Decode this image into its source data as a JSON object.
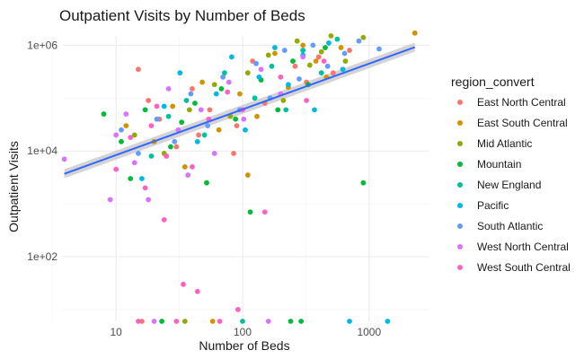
{
  "chart_data": {
    "type": "scatter",
    "title": "Outpatient Visits by Number of Beds",
    "xlabel": "Number of Beds",
    "ylabel": "Outpatient Visits",
    "x_scale": "log10",
    "y_scale": "log10",
    "xlim": [
      3.8,
      3000
    ],
    "ylim": [
      6,
      1500000
    ],
    "x_ticks": [
      {
        "value": 10,
        "label": "10"
      },
      {
        "value": 100,
        "label": "100"
      },
      {
        "value": 1000,
        "label": "1000"
      }
    ],
    "y_ticks": [
      {
        "value": 100,
        "label": "1e+02"
      },
      {
        "value": 10000,
        "label": "1e+04"
      },
      {
        "value": 1000000,
        "label": "1e+06"
      }
    ],
    "grid": true,
    "legend_title": "region_convert",
    "legend_position": "right",
    "series": [
      {
        "name": "East North Central",
        "color": "#F8766D",
        "points": [
          [
            15,
            350000
          ],
          [
            18,
            90000
          ],
          [
            22,
            40000
          ],
          [
            30,
            12000
          ],
          [
            40,
            150000
          ],
          [
            55,
            60000
          ],
          [
            70,
            250000
          ],
          [
            90,
            30000
          ],
          [
            120,
            500000
          ],
          [
            150,
            80000
          ],
          [
            200,
            120000
          ],
          [
            260,
            400000
          ],
          [
            320,
            200000
          ],
          [
            400,
            600000
          ],
          [
            520,
            300000
          ],
          [
            700,
            800000
          ],
          [
            16,
            6
          ],
          [
            25,
            8000
          ],
          [
            45,
            20000
          ],
          [
            85,
            9000
          ]
        ]
      },
      {
        "name": "East South Central",
        "color": "#D39200",
        "points": [
          [
            12,
            30000
          ],
          [
            20,
            15000
          ],
          [
            28,
            70000
          ],
          [
            35,
            5000
          ],
          [
            48,
            200000
          ],
          [
            65,
            25000
          ],
          [
            95,
            120000
          ],
          [
            130,
            45000
          ],
          [
            180,
            700000
          ],
          [
            230,
            160000
          ],
          [
            300,
            1000000
          ],
          [
            380,
            500000
          ],
          [
            460,
            250000
          ],
          [
            600,
            900000
          ],
          [
            2300,
            1700000
          ],
          [
            58,
            6
          ],
          [
            110,
            3500
          ]
        ]
      },
      {
        "name": "Mid Atlantic",
        "color": "#93AA00",
        "points": [
          [
            14,
            20000
          ],
          [
            24,
            9000
          ],
          [
            38,
            60000
          ],
          [
            60,
            180000
          ],
          [
            80,
            45000
          ],
          [
            110,
            300000
          ],
          [
            160,
            650000
          ],
          [
            210,
            90000
          ],
          [
            270,
            1200000
          ],
          [
            340,
            420000
          ],
          [
            420,
            750000
          ],
          [
            500,
            1500000
          ],
          [
            650,
            500000
          ],
          [
            900,
            1400000
          ],
          [
            35,
            6
          ]
        ]
      },
      {
        "name": "Mountain",
        "color": "#00BA38",
        "points": [
          [
            8,
            50000
          ],
          [
            11,
            15000
          ],
          [
            13,
            3000
          ],
          [
            17,
            60000
          ],
          [
            23,
            6
          ],
          [
            27,
            12000
          ],
          [
            33,
            35000
          ],
          [
            42,
            80000
          ],
          [
            52,
            2500
          ],
          [
            68,
            150000
          ],
          [
            88,
            40000
          ],
          [
            115,
            700
          ],
          [
            140,
            220000
          ],
          [
            190,
            60000
          ],
          [
            250,
            500000
          ],
          [
            330,
            180000
          ],
          [
            450,
            900000
          ],
          [
            240,
            6
          ],
          [
            290,
            6
          ],
          [
            900,
            2500
          ]
        ]
      },
      {
        "name": "New England",
        "color": "#00C19F",
        "points": [
          [
            19,
            8000
          ],
          [
            26,
            45000
          ],
          [
            36,
            90000
          ],
          [
            50,
            20000
          ],
          [
            72,
            300000
          ],
          [
            100,
            6
          ],
          [
            125,
            100000
          ],
          [
            170,
            400000
          ],
          [
            220,
            60000
          ],
          [
            300,
            800000
          ],
          [
            420,
            300000
          ],
          [
            560,
            1300000
          ]
        ]
      },
      {
        "name": "Pacific",
        "color": "#00B9E3",
        "points": [
          [
            16,
            3000
          ],
          [
            24,
            70000
          ],
          [
            32,
            300000
          ],
          [
            44,
            15000
          ],
          [
            62,
            120000
          ],
          [
            82,
            600000
          ],
          [
            105,
            25000
          ],
          [
            135,
            250000
          ],
          [
            180,
            900000
          ],
          [
            230,
            180000
          ],
          [
            300,
            650000
          ],
          [
            370,
            60000
          ],
          [
            480,
            1100000
          ],
          [
            620,
            350000
          ],
          [
            700,
            6
          ],
          [
            1400,
            6
          ]
        ]
      },
      {
        "name": "South Atlantic",
        "color": "#619CFF",
        "points": [
          [
            11,
            25000
          ],
          [
            15,
            9000
          ],
          [
            21,
            40000
          ],
          [
            29,
            15000
          ],
          [
            39,
            120000
          ],
          [
            53,
            30000
          ],
          [
            70,
            250000
          ],
          [
            95,
            60000
          ],
          [
            128,
            450000
          ],
          [
            165,
            100000
          ],
          [
            215,
            800000
          ],
          [
            280,
            230000
          ],
          [
            360,
            1000000
          ],
          [
            470,
            400000
          ],
          [
            640,
            700000
          ],
          [
            830,
            1200000
          ],
          [
            1200,
            850000
          ]
        ]
      },
      {
        "name": "West North Central",
        "color": "#DB72FB",
        "points": [
          [
            3.9,
            7000
          ],
          [
            9,
            1200
          ],
          [
            10,
            20000
          ],
          [
            12,
            50000
          ],
          [
            14,
            6000
          ],
          [
            18,
            1200
          ],
          [
            20,
            6
          ],
          [
            26,
            150000
          ],
          [
            31,
            25000
          ],
          [
            37,
            3500
          ],
          [
            47,
            60000
          ],
          [
            60,
            9000
          ],
          [
            78,
            200000
          ],
          [
            102,
            40000
          ],
          [
            140,
            350000
          ],
          [
            200,
            120000
          ],
          [
            300,
            600000
          ],
          [
            160,
            6
          ]
        ]
      },
      {
        "name": "West South Central",
        "color": "#FF61C3",
        "points": [
          [
            10,
            4500
          ],
          [
            13,
            18000
          ],
          [
            15,
            6
          ],
          [
            17,
            2000
          ],
          [
            19,
            30000
          ],
          [
            21,
            70000
          ],
          [
            24,
            500
          ],
          [
            25,
            8000
          ],
          [
            30,
            6
          ],
          [
            34,
            30
          ],
          [
            40,
            5000
          ],
          [
            44,
            22
          ],
          [
            54,
            40000
          ],
          [
            66,
            6
          ],
          [
            76,
            130000
          ],
          [
            92,
            10
          ],
          [
            100,
            60000
          ],
          [
            150,
            700
          ],
          [
            200,
            250000
          ],
          [
            320,
            90000
          ],
          [
            440,
            500000
          ]
        ]
      }
    ],
    "trend_line": {
      "from": [
        3.9,
        3700
      ],
      "to": [
        2300,
        920000
      ],
      "color": "#3366FF"
    }
  }
}
